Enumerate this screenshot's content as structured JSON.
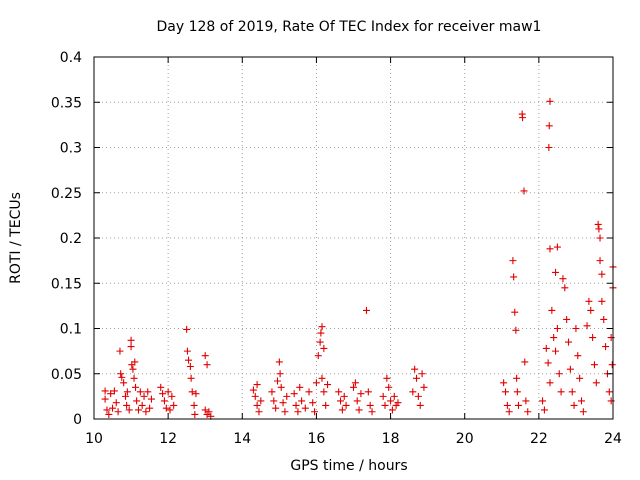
{
  "chart_data": {
    "type": "scatter",
    "title": "Day 128 of 2019, Rate Of TEC Index for receiver maw1",
    "xlabel": "GPS time / hours",
    "ylabel": "ROTI / TECUs",
    "xlim": [
      10,
      24
    ],
    "ylim": [
      0,
      0.4
    ],
    "xticks": [
      10,
      12,
      14,
      16,
      18,
      20,
      22,
      24
    ],
    "yticks": [
      0,
      0.05,
      0.1,
      0.15,
      0.2,
      0.25,
      0.3,
      0.35,
      0.4
    ],
    "ytick_labels": [
      "0",
      "0.05",
      "0.1",
      "0.15",
      "0.2",
      "0.25",
      "0.3",
      "0.35",
      "0.4"
    ],
    "grid": true,
    "marker": "plus",
    "series": [
      {
        "name": "ROTI",
        "color": "#e00000",
        "points": [
          [
            10.3,
            0.031
          ],
          [
            10.3,
            0.022
          ],
          [
            10.35,
            0.01
          ],
          [
            10.4,
            0.005
          ],
          [
            10.45,
            0.028
          ],
          [
            10.5,
            0.012
          ],
          [
            10.55,
            0.031
          ],
          [
            10.6,
            0.018
          ],
          [
            10.65,
            0.008
          ],
          [
            10.7,
            0.075
          ],
          [
            10.72,
            0.05
          ],
          [
            10.75,
            0.046
          ],
          [
            10.8,
            0.04
          ],
          [
            10.85,
            0.025
          ],
          [
            10.88,
            0.015
          ],
          [
            10.9,
            0.03
          ],
          [
            10.95,
            0.01
          ],
          [
            11.0,
            0.087
          ],
          [
            11.0,
            0.08
          ],
          [
            11.02,
            0.06
          ],
          [
            11.05,
            0.055
          ],
          [
            11.08,
            0.045
          ],
          [
            11.1,
            0.063
          ],
          [
            11.12,
            0.035
          ],
          [
            11.15,
            0.02
          ],
          [
            11.2,
            0.01
          ],
          [
            11.25,
            0.03
          ],
          [
            11.3,
            0.015
          ],
          [
            11.35,
            0.025
          ],
          [
            11.4,
            0.008
          ],
          [
            11.45,
            0.03
          ],
          [
            11.5,
            0.012
          ],
          [
            11.55,
            0.022
          ],
          [
            11.8,
            0.035
          ],
          [
            11.85,
            0.028
          ],
          [
            11.9,
            0.02
          ],
          [
            11.95,
            0.012
          ],
          [
            12.0,
            0.03
          ],
          [
            12.05,
            0.01
          ],
          [
            12.1,
            0.025
          ],
          [
            12.15,
            0.015
          ],
          [
            12.5,
            0.099
          ],
          [
            12.52,
            0.075
          ],
          [
            12.55,
            0.065
          ],
          [
            12.6,
            0.058
          ],
          [
            12.62,
            0.045
          ],
          [
            12.65,
            0.03
          ],
          [
            12.7,
            0.015
          ],
          [
            12.72,
            0.005
          ],
          [
            12.75,
            0.028
          ],
          [
            13.0,
            0.07
          ],
          [
            13.05,
            0.06
          ],
          [
            13.0,
            0.01
          ],
          [
            13.05,
            0.005
          ],
          [
            13.1,
            0.008
          ],
          [
            13.15,
            0.003
          ],
          [
            14.3,
            0.032
          ],
          [
            14.35,
            0.025
          ],
          [
            14.4,
            0.015
          ],
          [
            14.45,
            0.008
          ],
          [
            14.4,
            0.038
          ],
          [
            14.5,
            0.02
          ],
          [
            14.8,
            0.03
          ],
          [
            14.85,
            0.02
          ],
          [
            14.9,
            0.012
          ],
          [
            14.95,
            0.042
          ],
          [
            15.0,
            0.063
          ],
          [
            15.02,
            0.05
          ],
          [
            15.05,
            0.035
          ],
          [
            15.1,
            0.018
          ],
          [
            15.15,
            0.008
          ],
          [
            15.2,
            0.025
          ],
          [
            15.4,
            0.028
          ],
          [
            15.45,
            0.015
          ],
          [
            15.5,
            0.008
          ],
          [
            15.55,
            0.035
          ],
          [
            15.6,
            0.02
          ],
          [
            15.7,
            0.012
          ],
          [
            15.8,
            0.03
          ],
          [
            15.9,
            0.018
          ],
          [
            15.95,
            0.008
          ],
          [
            16.0,
            0.04
          ],
          [
            16.05,
            0.07
          ],
          [
            16.1,
            0.085
          ],
          [
            16.12,
            0.095
          ],
          [
            16.15,
            0.102
          ],
          [
            16.2,
            0.078
          ],
          [
            16.15,
            0.045
          ],
          [
            16.2,
            0.03
          ],
          [
            16.25,
            0.015
          ],
          [
            16.3,
            0.038
          ],
          [
            16.6,
            0.03
          ],
          [
            16.65,
            0.02
          ],
          [
            16.7,
            0.01
          ],
          [
            16.75,
            0.025
          ],
          [
            16.8,
            0.015
          ],
          [
            17.0,
            0.035
          ],
          [
            17.05,
            0.04
          ],
          [
            17.1,
            0.02
          ],
          [
            17.15,
            0.01
          ],
          [
            17.2,
            0.028
          ],
          [
            17.35,
            0.12
          ],
          [
            17.4,
            0.03
          ],
          [
            17.45,
            0.015
          ],
          [
            17.5,
            0.008
          ],
          [
            17.8,
            0.025
          ],
          [
            17.85,
            0.015
          ],
          [
            17.9,
            0.045
          ],
          [
            17.95,
            0.035
          ],
          [
            18.0,
            0.02
          ],
          [
            18.05,
            0.01
          ],
          [
            18.1,
            0.025
          ],
          [
            18.15,
            0.015
          ],
          [
            18.2,
            0.018
          ],
          [
            18.6,
            0.03
          ],
          [
            18.65,
            0.055
          ],
          [
            18.7,
            0.045
          ],
          [
            18.75,
            0.025
          ],
          [
            18.8,
            0.015
          ],
          [
            18.85,
            0.05
          ],
          [
            18.9,
            0.035
          ],
          [
            21.05,
            0.04
          ],
          [
            21.1,
            0.03
          ],
          [
            21.15,
            0.015
          ],
          [
            21.2,
            0.008
          ],
          [
            21.3,
            0.175
          ],
          [
            21.32,
            0.157
          ],
          [
            21.35,
            0.118
          ],
          [
            21.38,
            0.098
          ],
          [
            21.4,
            0.045
          ],
          [
            21.42,
            0.03
          ],
          [
            21.45,
            0.015
          ],
          [
            21.55,
            0.337
          ],
          [
            21.56,
            0.333
          ],
          [
            21.6,
            0.252
          ],
          [
            21.62,
            0.063
          ],
          [
            21.65,
            0.02
          ],
          [
            21.7,
            0.008
          ],
          [
            22.1,
            0.02
          ],
          [
            22.15,
            0.01
          ],
          [
            22.2,
            0.078
          ],
          [
            22.25,
            0.062
          ],
          [
            22.3,
            0.04
          ],
          [
            22.3,
            0.351
          ],
          [
            22.28,
            0.324
          ],
          [
            22.27,
            0.3
          ],
          [
            22.3,
            0.188
          ],
          [
            22.5,
            0.19
          ],
          [
            22.45,
            0.162
          ],
          [
            22.35,
            0.12
          ],
          [
            22.4,
            0.09
          ],
          [
            22.45,
            0.075
          ],
          [
            22.5,
            0.1
          ],
          [
            22.55,
            0.05
          ],
          [
            22.6,
            0.03
          ],
          [
            22.65,
            0.155
          ],
          [
            22.7,
            0.145
          ],
          [
            22.75,
            0.11
          ],
          [
            22.8,
            0.085
          ],
          [
            22.85,
            0.055
          ],
          [
            22.9,
            0.03
          ],
          [
            22.95,
            0.015
          ],
          [
            23.0,
            0.1
          ],
          [
            23.05,
            0.07
          ],
          [
            23.1,
            0.045
          ],
          [
            23.15,
            0.02
          ],
          [
            23.2,
            0.008
          ],
          [
            23.3,
            0.103
          ],
          [
            23.35,
            0.13
          ],
          [
            23.4,
            0.12
          ],
          [
            23.45,
            0.09
          ],
          [
            23.5,
            0.06
          ],
          [
            23.55,
            0.04
          ],
          [
            23.6,
            0.215
          ],
          [
            23.62,
            0.21
          ],
          [
            23.65,
            0.2
          ],
          [
            23.65,
            0.175
          ],
          [
            23.7,
            0.16
          ],
          [
            23.7,
            0.13
          ],
          [
            23.75,
            0.11
          ],
          [
            23.8,
            0.08
          ],
          [
            23.85,
            0.05
          ],
          [
            23.9,
            0.03
          ],
          [
            23.95,
            0.02
          ],
          [
            24.0,
            0.168
          ],
          [
            24.0,
            0.145
          ],
          [
            23.95,
            0.09
          ],
          [
            23.98,
            0.06
          ]
        ]
      }
    ]
  }
}
